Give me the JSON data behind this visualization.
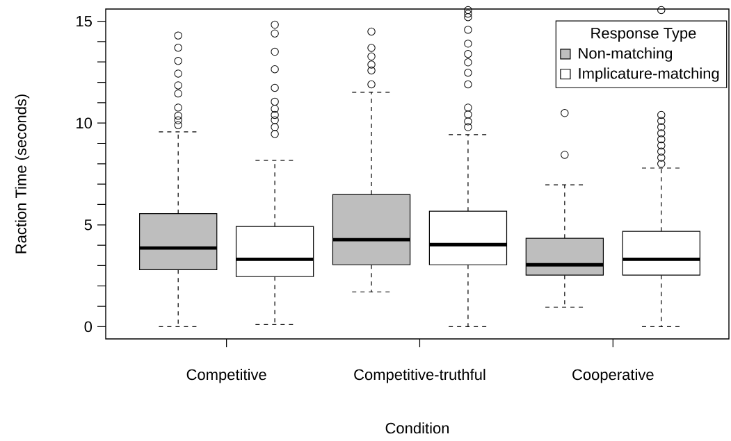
{
  "chart_data": {
    "type": "box",
    "xlabel": "Condition",
    "ylabel": "Raction Time (seconds)",
    "legend_title": "Response Type",
    "categories": [
      "Competitive",
      "Competitive-truthful",
      "Cooperative"
    ],
    "series": [
      {
        "name": "Non-matching",
        "color": "#bebebe",
        "boxes": [
          {
            "low": 0,
            "q1": 2.8,
            "median": 3.86,
            "q3": 5.55,
            "high": 9.57,
            "outliers": [
              14.3,
              13.7,
              13.05,
              12.43,
              11.85,
              11.45,
              10.76,
              10.36,
              10.14,
              9.9
            ]
          },
          {
            "low": 1.71,
            "q1": 3.04,
            "median": 4.27,
            "q3": 6.49,
            "high": 11.51,
            "outliers": [
              14.49,
              13.69,
              13.27,
              12.87,
              12.58,
              11.9
            ]
          },
          {
            "low": 0.96,
            "q1": 2.53,
            "median": 3.04,
            "q3": 4.34,
            "high": 6.97,
            "outliers": [
              8.44,
              10.49
            ]
          }
        ]
      },
      {
        "name": "Implicature-matching",
        "color": "#ffffff",
        "boxes": [
          {
            "low": 0.1,
            "q1": 2.46,
            "median": 3.31,
            "q3": 4.92,
            "high": 8.17,
            "outliers": [
              14.83,
              14.4,
              13.5,
              12.64,
              11.73,
              11.05,
              10.7,
              10.4,
              10.14,
              9.8,
              9.46
            ]
          },
          {
            "low": 0,
            "q1": 3.04,
            "median": 4.03,
            "q3": 5.67,
            "high": 9.43,
            "outliers": [
              15.55,
              15.37,
              15.2,
              14.58,
              13.9,
              13.39,
              12.98,
              12.47,
              11.9,
              10.76,
              10.42,
              10.08,
              9.8
            ]
          },
          {
            "low": 0,
            "q1": 2.53,
            "median": 3.31,
            "q3": 4.68,
            "high": 7.79,
            "outliers": [
              15.55,
              10.4,
              10.1,
              9.8,
              9.5,
              9.2,
              8.9,
              8.6,
              8.3,
              8.0
            ]
          }
        ]
      }
    ],
    "ylim": [
      -0.6,
      15.6
    ],
    "yticks": [
      0,
      {
        "value": 1,
        "label": null
      },
      {
        "value": 2,
        "label": null
      },
      {
        "value": 3,
        "label": null
      },
      {
        "value": 4,
        "label": null
      },
      5,
      {
        "value": 6,
        "label": null
      },
      {
        "value": 7,
        "label": null
      },
      {
        "value": 8,
        "label": null
      },
      {
        "value": 9,
        "label": null
      },
      10,
      {
        "value": 11,
        "label": null
      },
      {
        "value": 12,
        "label": null
      },
      {
        "value": 13,
        "label": null
      },
      {
        "value": 14,
        "label": null
      },
      15
    ],
    "legend": "top right",
    "grid": false
  }
}
